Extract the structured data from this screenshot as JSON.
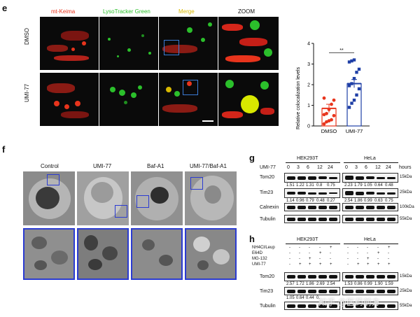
{
  "panel_e": {
    "label": "e",
    "columns": [
      "mt-Keima",
      "LysoTracker Green",
      "Merge",
      "ZOOM"
    ],
    "rows": [
      "DMSO",
      "UMI-77"
    ]
  },
  "chart_data": {
    "type": "bar",
    "categories": [
      "DMSO",
      "UMI-77"
    ],
    "values": [
      0.85,
      2.05
    ],
    "errors": [
      0.2,
      0.2
    ],
    "points": {
      "DMSO": [
        0.1,
        0.2,
        0.25,
        0.3,
        0.5,
        0.55,
        0.6,
        0.8,
        1.05,
        1.25,
        1.35
      ],
      "UMI-77": [
        0.9,
        1.1,
        1.25,
        1.5,
        1.8,
        1.95,
        2.05,
        2.3,
        2.6,
        2.75,
        3.1,
        3.15,
        3.2
      ]
    },
    "title": "",
    "xlabel": "",
    "ylabel": "Relative colocalization levels",
    "ylim": [
      0,
      4
    ],
    "yticks": [
      "0",
      "1",
      "2",
      "3",
      "4"
    ],
    "significance": "**",
    "colors": {
      "DMSO": "#e8341c",
      "UMI-77": "#1f3fa6"
    }
  },
  "panel_f": {
    "label": "f",
    "columns": [
      "Control",
      "UMI-77",
      "Baf-A1",
      "UMI-77/Baf-A1"
    ]
  },
  "panel_g": {
    "label": "g",
    "cell_lines": [
      "HEK293T",
      "HeLa"
    ],
    "treatment": "UMI-77",
    "timepoints": [
      "0",
      "3",
      "6",
      "12",
      "24"
    ],
    "unit": "hours",
    "rows": [
      {
        "name": "Tom20",
        "marker": "15kDa",
        "values_hek": [
          "1.51",
          "1.22",
          "1.31",
          "0.8",
          "0.75"
        ],
        "values_hela": [
          "2.23",
          "1.79",
          "1.05",
          "0.64",
          "0.48"
        ]
      },
      {
        "name": "Tim23",
        "marker": "25kDa",
        "values_hek": [
          "1.14",
          "0.96",
          "0.79",
          "0.48",
          "0.27"
        ],
        "values_hela": [
          "2.54",
          "1.86",
          "0.99",
          "0.63",
          "0.75"
        ]
      },
      {
        "name": "Calnexin",
        "marker": "100kDa"
      },
      {
        "name": "Tubulin",
        "marker": "55kDa"
      }
    ]
  },
  "panel_h": {
    "label": "h",
    "cell_lines": [
      "HEK293T",
      "HeLa"
    ],
    "conditions": [
      {
        "name": "NH4Cl/Leup",
        "marks": [
          "-",
          "-",
          "-",
          "-",
          "+"
        ]
      },
      {
        "name": "E64D",
        "marks": [
          "-",
          "-",
          "-",
          "+",
          "-"
        ]
      },
      {
        "name": "MG-132",
        "marks": [
          "-",
          "-",
          "+",
          "-",
          "-"
        ]
      },
      {
        "name": "UMI-77",
        "marks": [
          "-",
          "+",
          "+",
          "+",
          "+"
        ]
      }
    ],
    "rows": [
      {
        "name": "Tom20",
        "marker": "15kDa",
        "values_hek": [
          "2.57",
          "1.72",
          "1.86",
          "2.69",
          "2.54"
        ],
        "values_hela": [
          "1.53",
          "0.86",
          "0.99",
          "1.90",
          "1.59"
        ]
      },
      {
        "name": "Tim23",
        "marker": "25kDa",
        "values_hek": [
          "1.05",
          "0.64",
          "0.44",
          "0.",
          ""
        ],
        "values_hela": [
          "",
          "",
          "",
          "",
          ""
        ]
      },
      {
        "name": "Tubulin",
        "marker": "55kDa"
      }
    ],
    "watermark": "知乎 @医药前方"
  }
}
